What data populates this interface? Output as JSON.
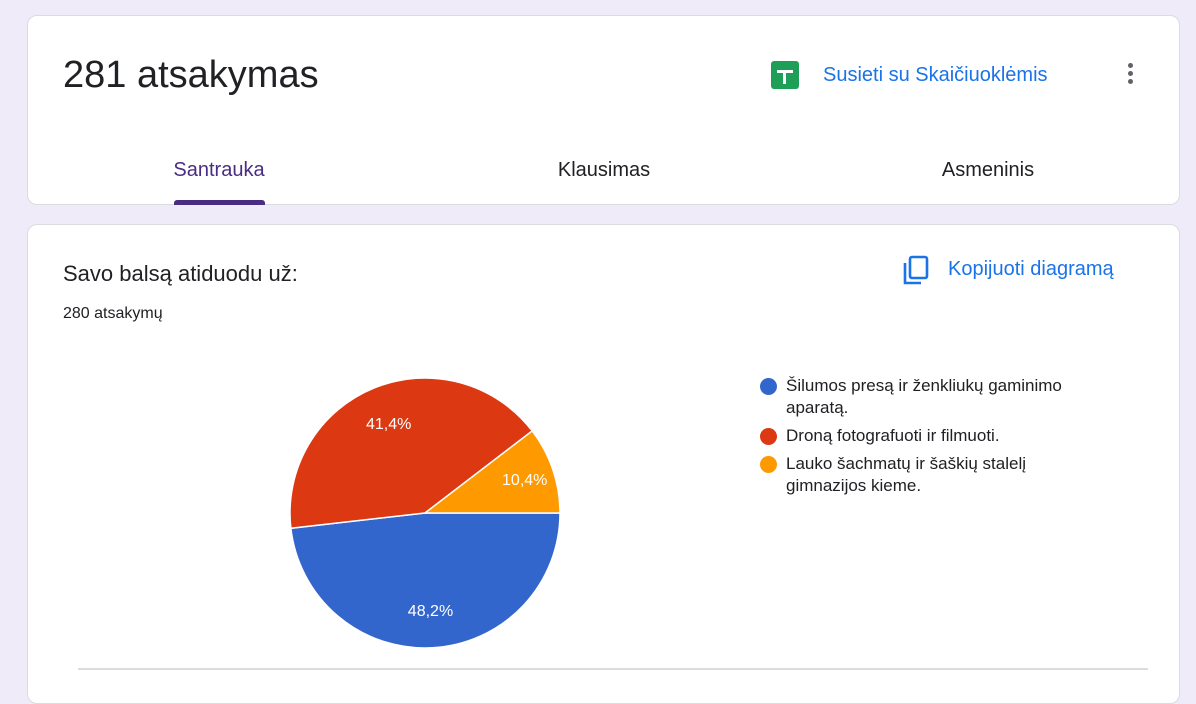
{
  "header": {
    "title": "281 atsakymas",
    "sheets_link": "Susieti su Skaičiuoklėmis",
    "sheets_icon": "sheets-icon",
    "more_icon": "more-vert-icon",
    "tabs": [
      {
        "label": "Santrauka",
        "active": true
      },
      {
        "label": "Klausimas",
        "active": false
      },
      {
        "label": "Asmeninis",
        "active": false
      }
    ]
  },
  "question": {
    "title": "Savo balsą atiduodu už:",
    "count": "280 atsakymų",
    "copy_label": "Kopijuoti diagramą",
    "copy_icon": "copy-icon"
  },
  "chart_data": {
    "type": "pie",
    "labels": [
      "Šilumos presą ir ženkliukų gaminimo aparatą.",
      "Droną fotografuoti ir filmuoti.",
      "Lauko šachmatų ir šaškių stalelį gimnazijos kieme."
    ],
    "values": [
      48.2,
      41.4,
      10.4
    ],
    "data_labels": [
      "48,2%",
      "41,4%",
      "10,4%"
    ],
    "colors": [
      "#3366cc",
      "#dc3912",
      "#ff9900"
    ],
    "legend": "right"
  }
}
